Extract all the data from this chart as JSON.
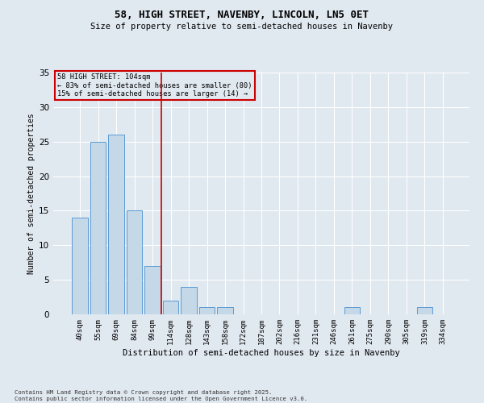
{
  "title1": "58, HIGH STREET, NAVENBY, LINCOLN, LN5 0ET",
  "title2": "Size of property relative to semi-detached houses in Navenby",
  "xlabel": "Distribution of semi-detached houses by size in Navenby",
  "ylabel": "Number of semi-detached properties",
  "categories": [
    "40sqm",
    "55sqm",
    "69sqm",
    "84sqm",
    "99sqm",
    "114sqm",
    "128sqm",
    "143sqm",
    "158sqm",
    "172sqm",
    "187sqm",
    "202sqm",
    "216sqm",
    "231sqm",
    "246sqm",
    "261sqm",
    "275sqm",
    "290sqm",
    "305sqm",
    "319sqm",
    "334sqm"
  ],
  "values": [
    14,
    25,
    26,
    15,
    7,
    2,
    4,
    1,
    1,
    0,
    0,
    0,
    0,
    0,
    0,
    1,
    0,
    0,
    0,
    1,
    0
  ],
  "bar_color": "#c5d8e8",
  "bar_edge_color": "#5b9bd5",
  "background_color": "#e0e8f0",
  "vline_x_index": 4.5,
  "vline_color": "#cc0000",
  "annotation_title": "58 HIGH STREET: 104sqm",
  "annotation_line2": "← 83% of semi-detached houses are smaller (80)",
  "annotation_line3": "15% of semi-detached houses are larger (14) →",
  "annotation_box_color": "#cc0000",
  "ylim": [
    0,
    35
  ],
  "yticks": [
    0,
    5,
    10,
    15,
    20,
    25,
    30,
    35
  ],
  "footnote1": "Contains HM Land Registry data © Crown copyright and database right 2025.",
  "footnote2": "Contains public sector information licensed under the Open Government Licence v3.0."
}
